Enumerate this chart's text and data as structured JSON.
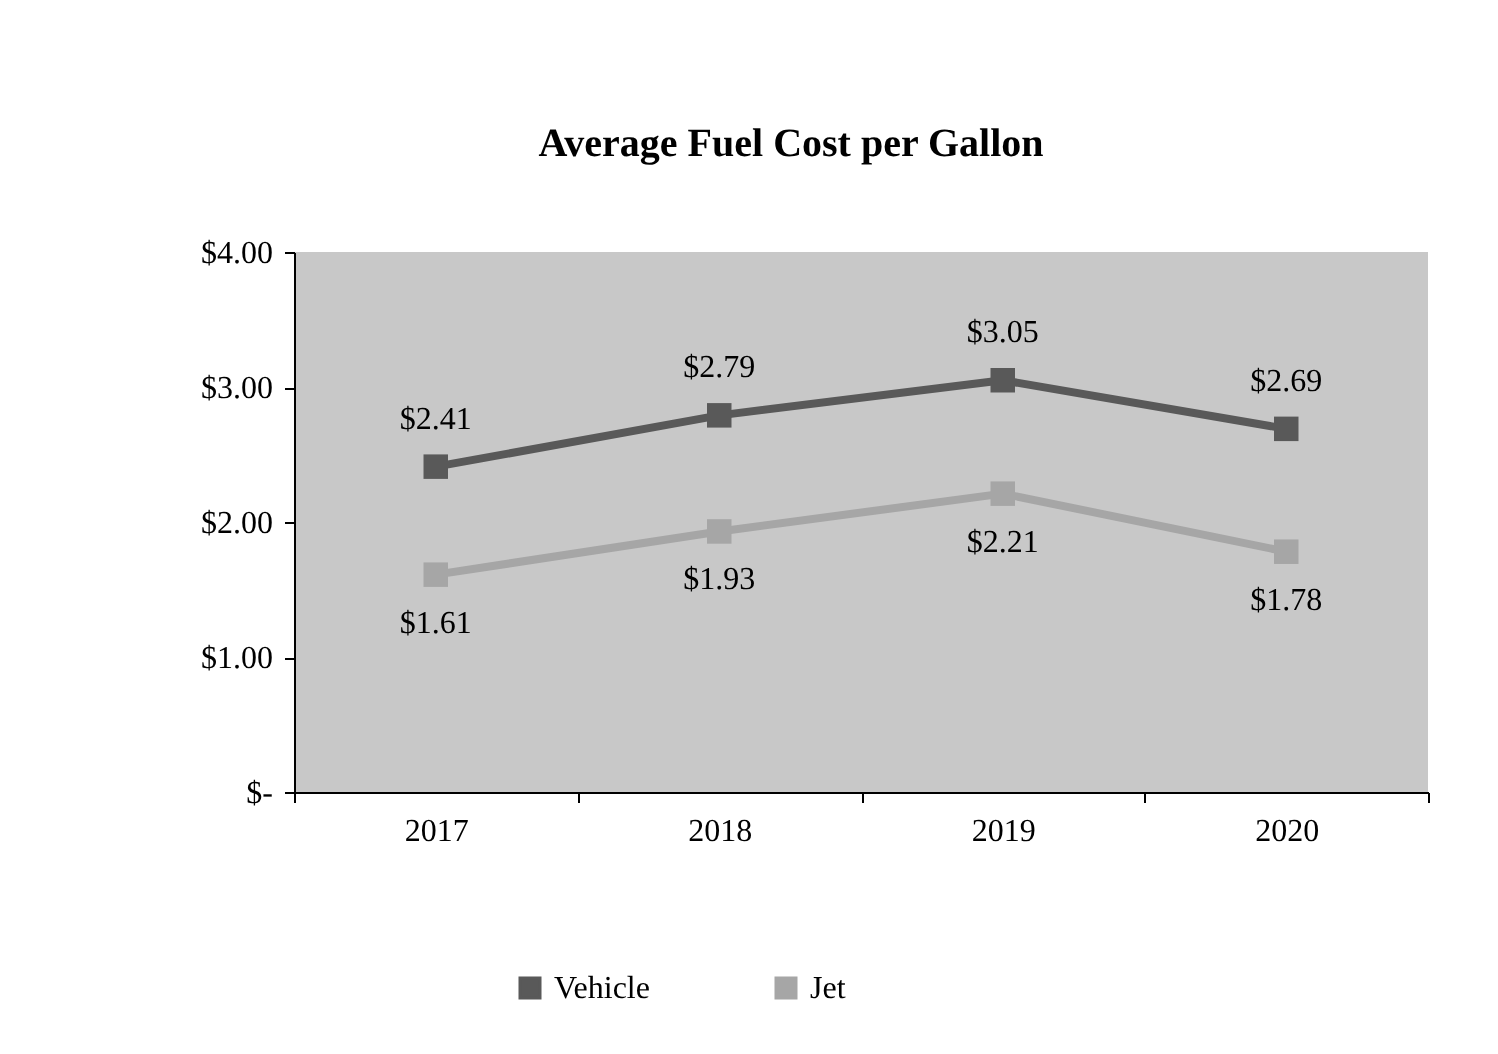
{
  "chart_data": {
    "type": "line",
    "title": "Average Fuel Cost per Gallon",
    "categories": [
      "2017",
      "2018",
      "2019",
      "2020"
    ],
    "series": [
      {
        "name": "Vehicle",
        "color": "#595959",
        "values": [
          2.41,
          2.79,
          3.05,
          2.69
        ],
        "value_labels": [
          "$2.41",
          "$2.79",
          "$3.05",
          "$2.69"
        ]
      },
      {
        "name": "Jet",
        "color": "#a6a6a6",
        "values": [
          1.61,
          1.93,
          2.21,
          1.78
        ],
        "value_labels": [
          "$1.61",
          "$1.93",
          "$2.21",
          "$1.78"
        ]
      }
    ],
    "ylim": [
      0,
      4
    ],
    "yticks": [
      {
        "value": 0,
        "label": "$-"
      },
      {
        "value": 1,
        "label": "$1.00"
      },
      {
        "value": 2,
        "label": "$2.00"
      },
      {
        "value": 3,
        "label": "$3.00"
      },
      {
        "value": 4,
        "label": "$4.00"
      }
    ],
    "grid": false,
    "legend": "bottom",
    "marker": "square",
    "line_style": "solid"
  }
}
